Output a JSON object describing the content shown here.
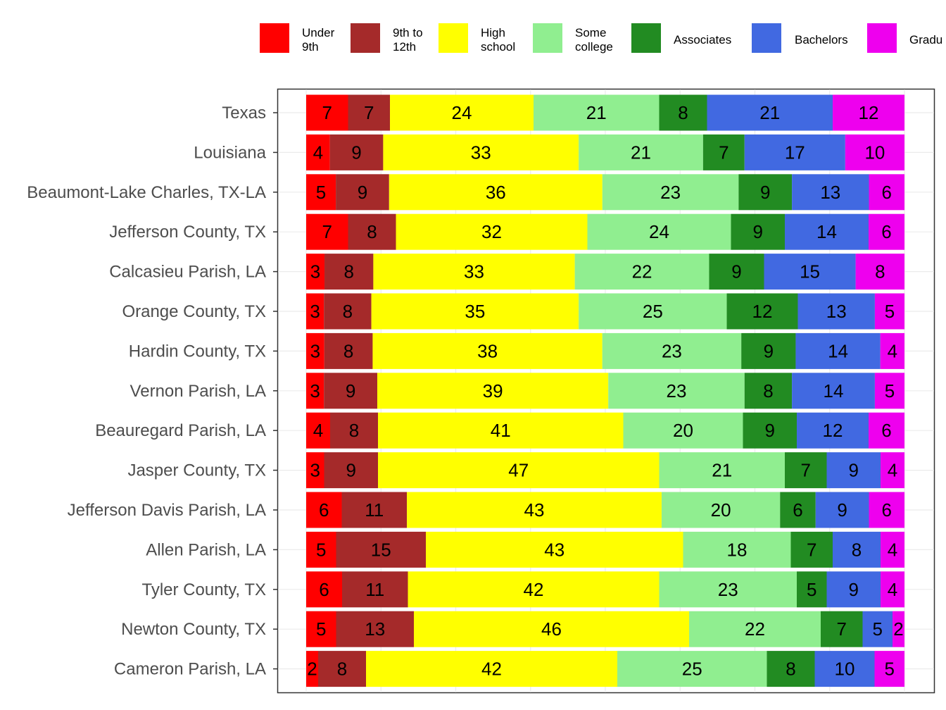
{
  "chart_data": {
    "type": "bar",
    "orientation": "horizontal",
    "stacked": true,
    "normalized": true,
    "title": "",
    "xlabel": "",
    "ylabel": "",
    "legend_position": "top",
    "grid": true,
    "categories": [
      "Texas",
      "Louisiana",
      "Beaumont-Lake Charles, TX-LA",
      "Jefferson County, TX",
      "Calcasieu Parish, LA",
      "Orange County, TX",
      "Hardin County, TX",
      "Vernon Parish, LA",
      "Beauregard Parish, LA",
      "Jasper County, TX",
      "Jefferson Davis Parish, LA",
      "Allen Parish, LA",
      "Tyler County, TX",
      "Newton County, TX",
      "Cameron Parish, LA"
    ],
    "series": [
      {
        "name": "Under 9th",
        "legend_lines": [
          "Under",
          "9th"
        ],
        "color": "#ff0000",
        "values": [
          7,
          4,
          5,
          7,
          3,
          3,
          3,
          3,
          4,
          3,
          6,
          5,
          6,
          5,
          2
        ]
      },
      {
        "name": "9th to 12th",
        "legend_lines": [
          "9th to",
          "12th"
        ],
        "color": "#a52a2a",
        "values": [
          7,
          9,
          9,
          8,
          8,
          8,
          8,
          9,
          8,
          9,
          11,
          15,
          11,
          13,
          8
        ]
      },
      {
        "name": "High school",
        "legend_lines": [
          "High",
          "school"
        ],
        "color": "#ffff00",
        "values": [
          24,
          33,
          36,
          32,
          33,
          35,
          38,
          39,
          41,
          47,
          43,
          43,
          42,
          46,
          42
        ]
      },
      {
        "name": "Some college",
        "legend_lines": [
          "Some",
          "college"
        ],
        "color": "#90ee90",
        "values": [
          21,
          21,
          23,
          24,
          22,
          25,
          23,
          23,
          20,
          21,
          20,
          18,
          23,
          22,
          25
        ]
      },
      {
        "name": "Associates",
        "legend_lines": [
          "Associates"
        ],
        "color": "#228b22",
        "values": [
          8,
          7,
          9,
          9,
          9,
          12,
          9,
          8,
          9,
          7,
          6,
          7,
          5,
          7,
          8
        ]
      },
      {
        "name": "Bachelors",
        "legend_lines": [
          "Bachelors"
        ],
        "color": "#4169e1",
        "values": [
          21,
          17,
          13,
          14,
          15,
          13,
          14,
          14,
          12,
          9,
          9,
          8,
          9,
          5,
          10
        ]
      },
      {
        "name": "Graduate",
        "legend_lines": [
          "Gradu"
        ],
        "color": "#ee00ee",
        "values": [
          12,
          10,
          6,
          6,
          8,
          5,
          4,
          5,
          6,
          4,
          6,
          4,
          4,
          2,
          5
        ]
      }
    ]
  }
}
